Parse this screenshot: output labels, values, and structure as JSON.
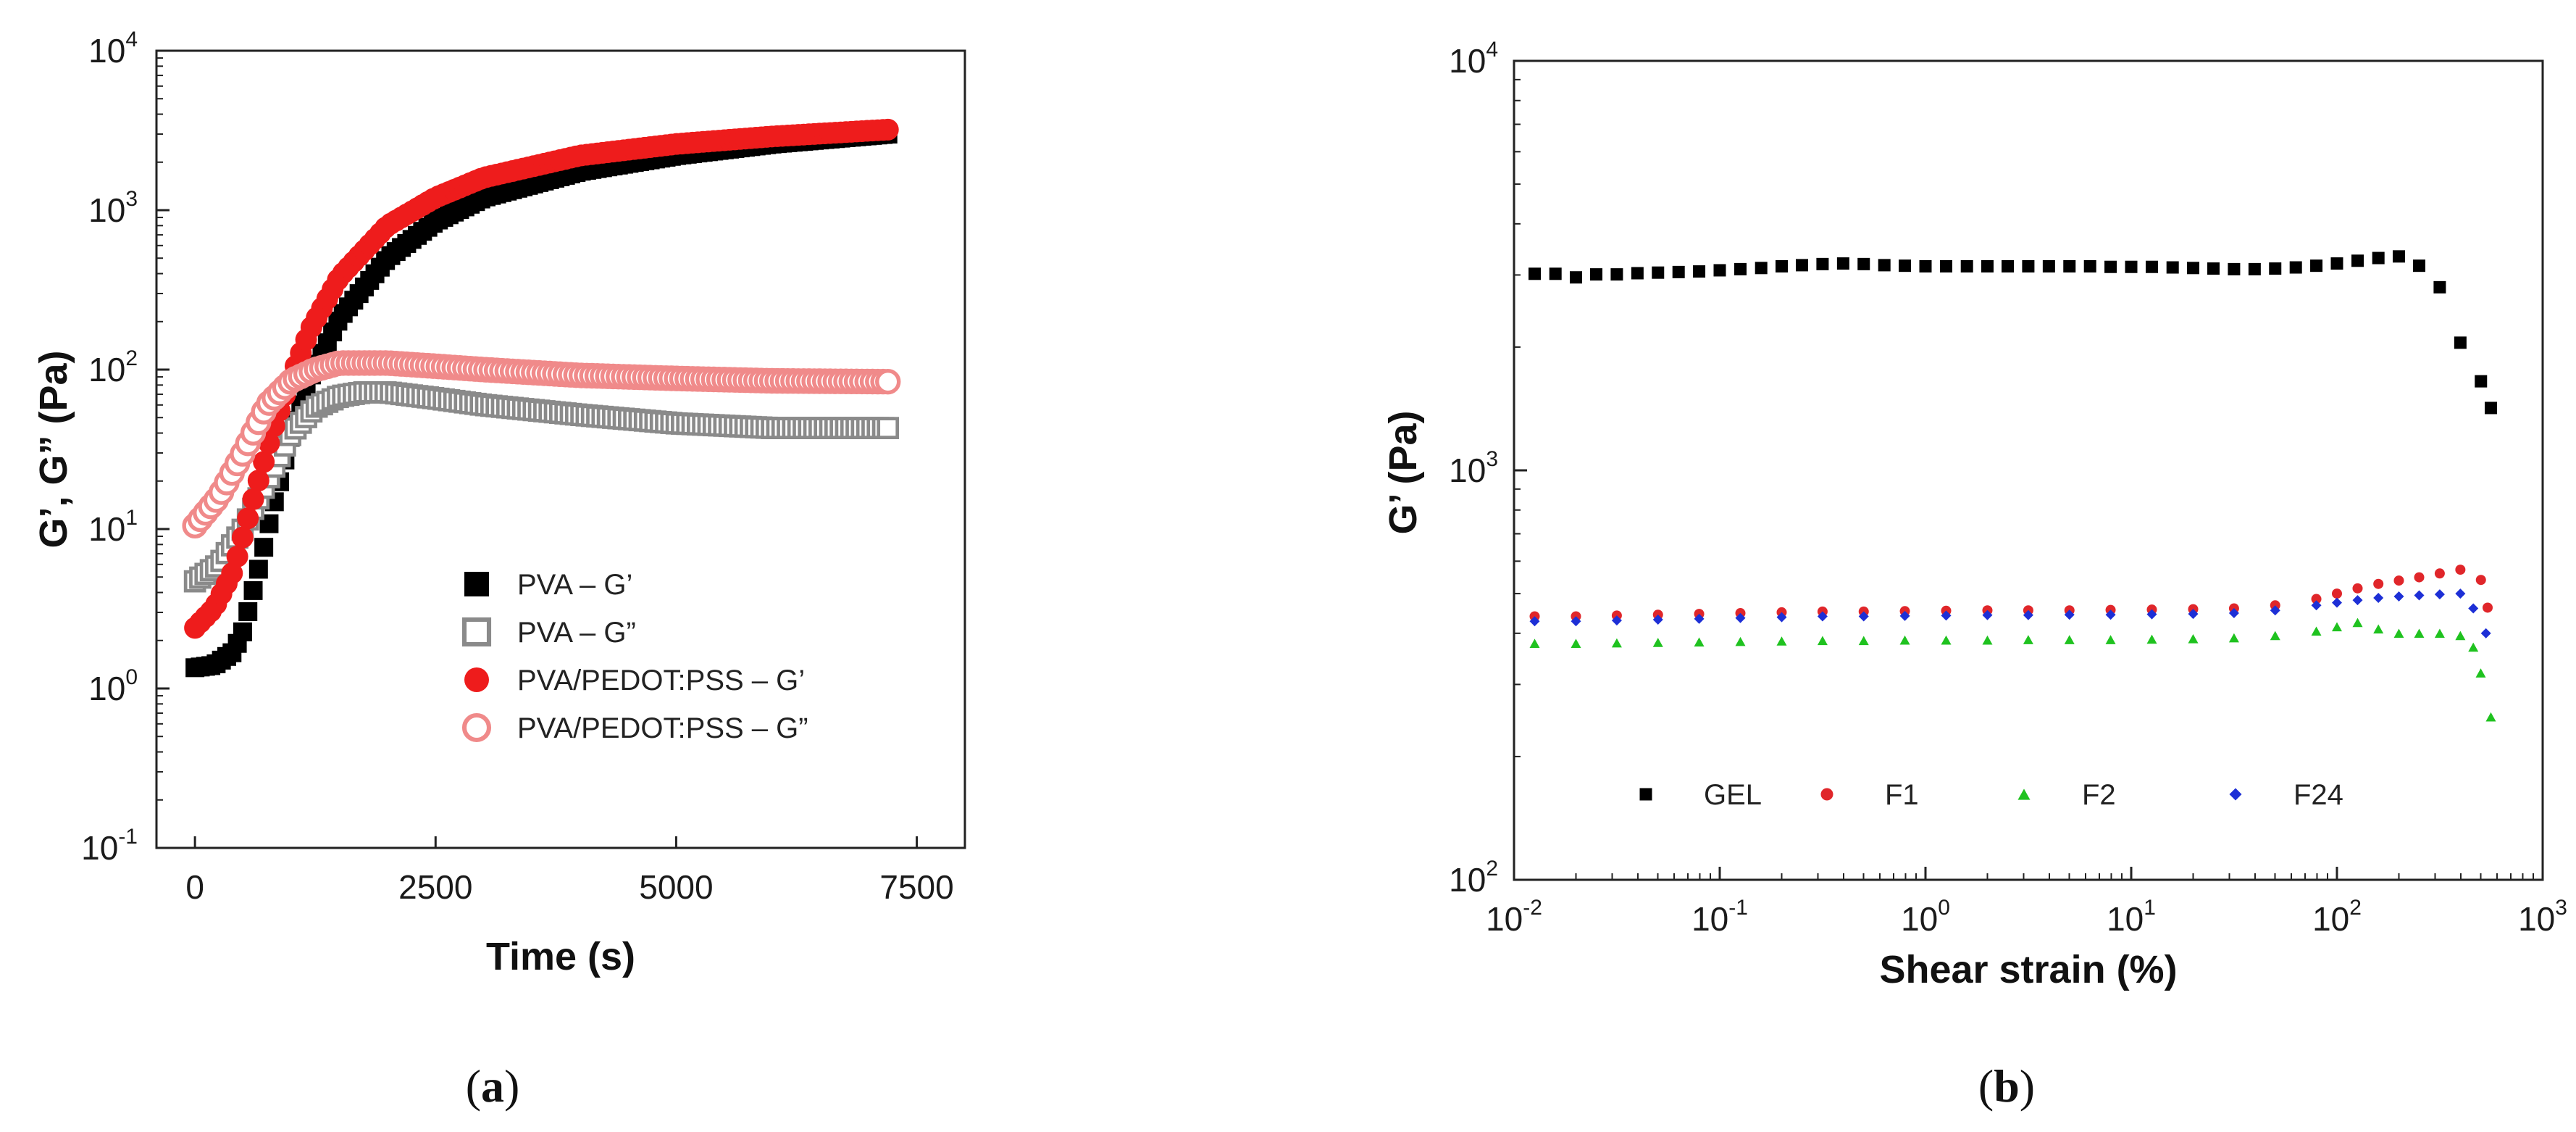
{
  "chart_data": [
    {
      "type": "scatter",
      "panel_label": "a",
      "xlabel": "Time (s)",
      "ylabel": "G’, G” (Pa)",
      "xscale": "linear",
      "yscale": "log",
      "xlim": [
        -400,
        8000
      ],
      "ylim": [
        0.1,
        10000
      ],
      "xticks": [
        {
          "value": 0,
          "label": "0"
        },
        {
          "value": 2500,
          "label": "2500"
        },
        {
          "value": 5000,
          "label": "5000"
        },
        {
          "value": 7500,
          "label": "7500"
        }
      ],
      "yticks": [
        {
          "value": 0.1,
          "base": "10",
          "exp": "-1"
        },
        {
          "value": 1,
          "base": "10",
          "exp": "0"
        },
        {
          "value": 10,
          "base": "10",
          "exp": "1"
        },
        {
          "value": 100,
          "base": "10",
          "exp": "2"
        },
        {
          "value": 1000,
          "base": "10",
          "exp": "3"
        },
        {
          "value": 10000,
          "base": "10",
          "exp": "4"
        }
      ],
      "legend_position": "center-right",
      "series": [
        {
          "name": "PVA – G’",
          "marker": "square",
          "filled": true,
          "color": "#000000",
          "points": [
            [
              0,
              1.35
            ],
            [
              200,
              1.4
            ],
            [
              400,
              1.7
            ],
            [
              500,
              2.3
            ],
            [
              600,
              4
            ],
            [
              700,
              7
            ],
            [
              800,
              13
            ],
            [
              900,
              22
            ],
            [
              1000,
              40
            ],
            [
              1200,
              90
            ],
            [
              1500,
              210
            ],
            [
              2000,
              500
            ],
            [
              2500,
              850
            ],
            [
              3000,
              1200
            ],
            [
              4000,
              1750
            ],
            [
              5000,
              2200
            ],
            [
              6000,
              2600
            ],
            [
              7200,
              3000
            ]
          ]
        },
        {
          "name": "PVA – G”",
          "marker": "square",
          "filled": false,
          "color": "#8a8a8a",
          "points": [
            [
              0,
              4.7
            ],
            [
              250,
              6
            ],
            [
              500,
              10
            ],
            [
              750,
              20
            ],
            [
              1000,
              40
            ],
            [
              1250,
              58
            ],
            [
              1500,
              68
            ],
            [
              1750,
              72
            ],
            [
              2000,
              72
            ],
            [
              2500,
              66
            ],
            [
              3000,
              60
            ],
            [
              4000,
              52
            ],
            [
              5000,
              46
            ],
            [
              6000,
              43
            ],
            [
              7200,
              43
            ]
          ]
        },
        {
          "name": "PVA/PEDOT:PSS – G’",
          "marker": "circle",
          "filled": true,
          "color": "#ee1c1c",
          "points": [
            [
              0,
              2.4
            ],
            [
              200,
              3.2
            ],
            [
              400,
              5.5
            ],
            [
              600,
              15
            ],
            [
              800,
              40
            ],
            [
              1000,
              90
            ],
            [
              1200,
              180
            ],
            [
              1500,
              380
            ],
            [
              2000,
              800
            ],
            [
              2500,
              1200
            ],
            [
              3000,
              1600
            ],
            [
              4000,
              2200
            ],
            [
              5000,
              2600
            ],
            [
              6000,
              2900
            ],
            [
              7200,
              3200
            ]
          ]
        },
        {
          "name": "PVA/PEDOT:PSS – G”",
          "marker": "circle",
          "filled": false,
          "color": "#f08a8a",
          "points": [
            [
              0,
              10.5
            ],
            [
              250,
              16
            ],
            [
              500,
              30
            ],
            [
              750,
              60
            ],
            [
              1000,
              85
            ],
            [
              1250,
              100
            ],
            [
              1500,
              110
            ],
            [
              2000,
              110
            ],
            [
              2500,
              105
            ],
            [
              3000,
              100
            ],
            [
              4000,
              92
            ],
            [
              5000,
              88
            ],
            [
              6000,
              85
            ],
            [
              7200,
              84
            ]
          ]
        }
      ]
    },
    {
      "type": "scatter",
      "panel_label": "b",
      "xlabel": "Shear strain (%)",
      "ylabel": "G’ (Pa)",
      "xscale": "log",
      "yscale": "log",
      "xlim": [
        0.01,
        1000
      ],
      "ylim": [
        100,
        10000
      ],
      "xticks": [
        {
          "value": 0.01,
          "base": "10",
          "exp": "-2"
        },
        {
          "value": 0.1,
          "base": "10",
          "exp": "-1"
        },
        {
          "value": 1,
          "base": "10",
          "exp": "0"
        },
        {
          "value": 10,
          "base": "10",
          "exp": "1"
        },
        {
          "value": 100,
          "base": "10",
          "exp": "2"
        },
        {
          "value": 1000,
          "base": "10",
          "exp": "3"
        }
      ],
      "yticks": [
        {
          "value": 100,
          "base": "10",
          "exp": "2"
        },
        {
          "value": 1000,
          "base": "10",
          "exp": "3"
        },
        {
          "value": 10000,
          "base": "10",
          "exp": "4"
        }
      ],
      "legend_position": "bottom",
      "series": [
        {
          "name": "GEL",
          "marker": "square",
          "filled": true,
          "color": "#000000",
          "points": [
            [
              0.0126,
              3020
            ],
            [
              0.0159,
              3020
            ],
            [
              0.02,
              2960
            ],
            [
              0.0251,
              3010
            ],
            [
              0.0316,
              3010
            ],
            [
              0.0398,
              3030
            ],
            [
              0.0501,
              3040
            ],
            [
              0.0631,
              3050
            ],
            [
              0.0794,
              3060
            ],
            [
              0.1,
              3080
            ],
            [
              0.126,
              3100
            ],
            [
              0.159,
              3120
            ],
            [
              0.2,
              3150
            ],
            [
              0.251,
              3170
            ],
            [
              0.316,
              3190
            ],
            [
              0.398,
              3200
            ],
            [
              0.501,
              3190
            ],
            [
              0.631,
              3170
            ],
            [
              0.794,
              3160
            ],
            [
              1,
              3150
            ],
            [
              1.26,
              3150
            ],
            [
              1.59,
              3150
            ],
            [
              2,
              3150
            ],
            [
              2.51,
              3150
            ],
            [
              3.16,
              3150
            ],
            [
              3.98,
              3150
            ],
            [
              5.01,
              3150
            ],
            [
              6.31,
              3150
            ],
            [
              7.94,
              3140
            ],
            [
              10,
              3140
            ],
            [
              12.6,
              3140
            ],
            [
              15.9,
              3130
            ],
            [
              20,
              3120
            ],
            [
              25.1,
              3110
            ],
            [
              31.6,
              3100
            ],
            [
              39.8,
              3100
            ],
            [
              50.1,
              3110
            ],
            [
              63.1,
              3130
            ],
            [
              79.4,
              3160
            ],
            [
              100,
              3200
            ],
            [
              126,
              3250
            ],
            [
              159,
              3300
            ],
            [
              200,
              3330
            ],
            [
              251,
              3160
            ],
            [
              316,
              2800
            ],
            [
              398,
              2050
            ],
            [
              501,
              1650
            ],
            [
              560,
              1420
            ]
          ]
        },
        {
          "name": "F1",
          "marker": "circle",
          "filled": true,
          "color": "#e0262a",
          "points": [
            [
              0.0126,
              440
            ],
            [
              0.02,
              440
            ],
            [
              0.0316,
              442
            ],
            [
              0.0501,
              444
            ],
            [
              0.0794,
              446
            ],
            [
              0.126,
              448
            ],
            [
              0.2,
              450
            ],
            [
              0.316,
              452
            ],
            [
              0.501,
              452
            ],
            [
              0.794,
              453
            ],
            [
              1.26,
              454
            ],
            [
              2,
              455
            ],
            [
              3.16,
              455
            ],
            [
              5.01,
              455
            ],
            [
              7.94,
              456
            ],
            [
              12.6,
              457
            ],
            [
              20,
              458
            ],
            [
              31.6,
              460
            ],
            [
              50.1,
              468
            ],
            [
              79.4,
              485
            ],
            [
              100,
              500
            ],
            [
              126,
              515
            ],
            [
              159,
              528
            ],
            [
              200,
              538
            ],
            [
              251,
              548
            ],
            [
              316,
              560
            ],
            [
              398,
              572
            ],
            [
              501,
              540
            ],
            [
              540,
              462
            ]
          ]
        },
        {
          "name": "F2",
          "marker": "triangle",
          "filled": true,
          "color": "#1fc21f",
          "points": [
            [
              0.0126,
              378
            ],
            [
              0.02,
              378
            ],
            [
              0.0316,
              379
            ],
            [
              0.0501,
              380
            ],
            [
              0.0794,
              381
            ],
            [
              0.126,
              382
            ],
            [
              0.2,
              383
            ],
            [
              0.316,
              384
            ],
            [
              0.501,
              384
            ],
            [
              0.794,
              385
            ],
            [
              1.26,
              385
            ],
            [
              2,
              385
            ],
            [
              3.16,
              386
            ],
            [
              5.01,
              386
            ],
            [
              7.94,
              386
            ],
            [
              12.6,
              387
            ],
            [
              20,
              388
            ],
            [
              31.6,
              390
            ],
            [
              50.1,
              395
            ],
            [
              79.4,
              405
            ],
            [
              100,
              415
            ],
            [
              126,
              425
            ],
            [
              159,
              410
            ],
            [
              200,
              400
            ],
            [
              251,
              400
            ],
            [
              316,
              400
            ],
            [
              398,
              395
            ],
            [
              460,
              370
            ],
            [
              500,
              320
            ],
            [
              560,
              250
            ]
          ]
        },
        {
          "name": "F24",
          "marker": "diamond",
          "filled": true,
          "color": "#1d2fd6",
          "points": [
            [
              0.0126,
              428
            ],
            [
              0.02,
              428
            ],
            [
              0.0316,
              430
            ],
            [
              0.0501,
              432
            ],
            [
              0.0794,
              434
            ],
            [
              0.126,
              436
            ],
            [
              0.2,
              438
            ],
            [
              0.316,
              440
            ],
            [
              0.501,
              440
            ],
            [
              0.794,
              441
            ],
            [
              1.26,
              442
            ],
            [
              2,
              443
            ],
            [
              3.16,
              443
            ],
            [
              5.01,
              444
            ],
            [
              7.94,
              444
            ],
            [
              12.6,
              445
            ],
            [
              20,
              446
            ],
            [
              31.6,
              448
            ],
            [
              50.1,
              455
            ],
            [
              79.4,
              468
            ],
            [
              100,
              475
            ],
            [
              126,
              482
            ],
            [
              159,
              488
            ],
            [
              200,
              492
            ],
            [
              251,
              495
            ],
            [
              316,
              498
            ],
            [
              398,
              500
            ],
            [
              460,
              460
            ],
            [
              530,
              400
            ]
          ]
        }
      ]
    }
  ]
}
